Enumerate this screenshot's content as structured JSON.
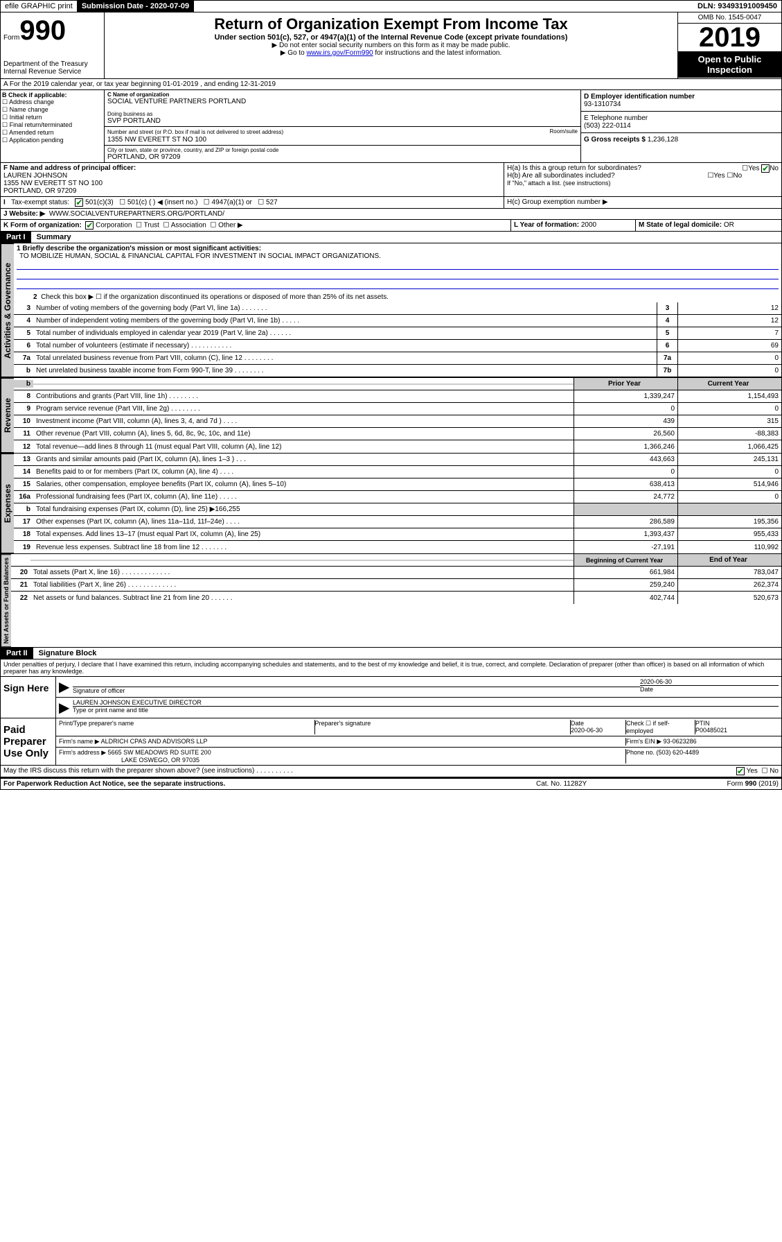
{
  "topbar": {
    "efile": "efile GRAPHIC print",
    "submission_label": "Submission Date - 2020-07-09",
    "dln": "DLN: 93493191009450"
  },
  "header": {
    "form_label": "Form",
    "form_number": "990",
    "title": "Return of Organization Exempt From Income Tax",
    "subtitle": "Under section 501(c), 527, or 4947(a)(1) of the Internal Revenue Code (except private foundations)",
    "note1": "▶ Do not enter social security numbers on this form as it may be made public.",
    "note2_pre": "▶ Go to ",
    "note2_link": "www.irs.gov/Form990",
    "note2_post": " for instructions and the latest information.",
    "omb": "OMB No. 1545-0047",
    "year": "2019",
    "inspect": "Open to Public Inspection",
    "dept": "Department of the Treasury\nInternal Revenue Service"
  },
  "row_a": "A For the 2019 calendar year, or tax year beginning 01-01-2019    , and ending 12-31-2019",
  "section_b": {
    "label": "B Check if applicable:",
    "opts": [
      "Address change",
      "Name change",
      "Initial return",
      "Final return/terminated",
      "Amended return",
      "Application pending"
    ]
  },
  "section_c": {
    "name_lbl": "C Name of organization",
    "name": "SOCIAL VENTURE PARTNERS PORTLAND",
    "dba_lbl": "Doing business as",
    "dba": "SVP PORTLAND",
    "addr_lbl": "Number and street (or P.O. box if mail is not delivered to street address)",
    "room_lbl": "Room/suite",
    "addr": "1355 NW EVERETT ST NO 100",
    "city_lbl": "City or town, state or province, country, and ZIP or foreign postal code",
    "city": "PORTLAND, OR  97209"
  },
  "section_d": {
    "ein_lbl": "D Employer identification number",
    "ein": "93-1310734",
    "phone_lbl": "E Telephone number",
    "phone": "(503) 222-0114",
    "gross_lbl": "G Gross receipts $ ",
    "gross": "1,236,128"
  },
  "section_f": {
    "lbl": "F Name and address of principal officer:",
    "name": "LAUREN JOHNSON",
    "addr1": "1355 NW EVERETT ST NO 100",
    "addr2": "PORTLAND, OR  97209"
  },
  "section_h": {
    "ha": "H(a)  Is this a group return for subordinates?",
    "hb": "H(b)  Are all subordinates included?",
    "hb_note": "If \"No,\" attach a list. (see instructions)",
    "hc": "H(c)  Group exemption number ▶"
  },
  "row_i": {
    "lbl": "Tax-exempt status:",
    "o1": "501(c)(3)",
    "o2": "501(c) (   ) ◀ (insert no.)",
    "o3": "4947(a)(1) or",
    "o4": "527"
  },
  "row_j": {
    "lbl": "J   Website: ▶",
    "url": "WWW.SOCIALVENTUREPARTNERS.ORG/PORTLAND/"
  },
  "row_k": {
    "lbl": "K Form of organization:",
    "o1": "Corporation",
    "o2": "Trust",
    "o3": "Association",
    "o4": "Other ▶",
    "l_lbl": "L Year of formation: ",
    "l_val": "2000",
    "m_lbl": "M State of legal domicile: ",
    "m_val": "OR"
  },
  "part1": {
    "hdr": "Part I",
    "title": "Summary",
    "l1_lbl": "1  Briefly describe the organization's mission or most significant activities:",
    "l1_val": "TO MOBILIZE HUMAN, SOCIAL & FINANCIAL CAPITAL FOR INVESTMENT IN SOCIAL IMPACT ORGANIZATIONS.",
    "l2": "Check this box ▶ ☐  if the organization discontinued its operations or disposed of more than 25% of its net assets.",
    "tabs": {
      "gov": "Activities & Governance",
      "rev": "Revenue",
      "exp": "Expenses",
      "net": "Net Assets or Fund Balances"
    },
    "col_prior": "Prior Year",
    "col_curr": "Current Year",
    "col_beg": "Beginning of Current Year",
    "col_end": "End of Year",
    "lines_gov": [
      {
        "n": "3",
        "d": "Number of voting members of the governing body (Part VI, line 1a)   .    .    .    .    .    .    .",
        "b": "3",
        "v": "12"
      },
      {
        "n": "4",
        "d": "Number of independent voting members of the governing body (Part VI, line 1b)   .    .    .    .    .",
        "b": "4",
        "v": "12"
      },
      {
        "n": "5",
        "d": "Total number of individuals employed in calendar year 2019 (Part V, line 2a)   .    .    .    .    .    .",
        "b": "5",
        "v": "7"
      },
      {
        "n": "6",
        "d": "Total number of volunteers (estimate if necessary)   .    .    .    .    .    .    .    .    .    .    .",
        "b": "6",
        "v": "69"
      },
      {
        "n": "7a",
        "d": "Total unrelated business revenue from Part VIII, column (C), line 12   .    .    .    .    .    .    .    .",
        "b": "7a",
        "v": "0"
      },
      {
        "n": "b",
        "d": "Net unrelated business taxable income from Form 990-T, line 39   .    .    .    .    .    .    .    .",
        "b": "7b",
        "v": "0"
      }
    ],
    "lines_rev": [
      {
        "n": "8",
        "d": "Contributions and grants (Part VIII, line 1h)   .    .    .    .    .    .    .    .",
        "p": "1,339,247",
        "c": "1,154,493"
      },
      {
        "n": "9",
        "d": "Program service revenue (Part VIII, line 2g)   .    .    .    .    .    .    .    .",
        "p": "0",
        "c": "0"
      },
      {
        "n": "10",
        "d": "Investment income (Part VIII, column (A), lines 3, 4, and 7d )   .    .    .    .",
        "p": "439",
        "c": "315"
      },
      {
        "n": "11",
        "d": "Other revenue (Part VIII, column (A), lines 5, 6d, 8c, 9c, 10c, and 11e)",
        "p": "26,560",
        "c": "-88,383"
      },
      {
        "n": "12",
        "d": "Total revenue—add lines 8 through 11 (must equal Part VIII, column (A), line 12)",
        "p": "1,366,246",
        "c": "1,066,425"
      }
    ],
    "lines_exp": [
      {
        "n": "13",
        "d": "Grants and similar amounts paid (Part IX, column (A), lines 1–3 )   .    .    .",
        "p": "443,663",
        "c": "245,131"
      },
      {
        "n": "14",
        "d": "Benefits paid to or for members (Part IX, column (A), line 4)   .    .    .    .",
        "p": "0",
        "c": "0"
      },
      {
        "n": "15",
        "d": "Salaries, other compensation, employee benefits (Part IX, column (A), lines 5–10)",
        "p": "638,413",
        "c": "514,946"
      },
      {
        "n": "16a",
        "d": "Professional fundraising fees (Part IX, column (A), line 11e)   .    .    .    .    .",
        "p": "24,772",
        "c": "0"
      },
      {
        "n": "b",
        "d": "Total fundraising expenses (Part IX, column (D), line 25) ▶166,255",
        "p": "",
        "c": "",
        "grey": true
      },
      {
        "n": "17",
        "d": "Other expenses (Part IX, column (A), lines 11a–11d, 11f–24e)   .    .    .    .",
        "p": "286,589",
        "c": "195,356"
      },
      {
        "n": "18",
        "d": "Total expenses. Add lines 13–17 (must equal Part IX, column (A), line 25)",
        "p": "1,393,437",
        "c": "955,433"
      },
      {
        "n": "19",
        "d": "Revenue less expenses. Subtract line 18 from line 12   .    .    .    .    .    .    .",
        "p": "-27,191",
        "c": "110,992"
      }
    ],
    "lines_net": [
      {
        "n": "20",
        "d": "Total assets (Part X, line 16)   .    .    .    .    .    .    .    .    .    .    .    .    .",
        "p": "661,984",
        "c": "783,047"
      },
      {
        "n": "21",
        "d": "Total liabilities (Part X, line 26)   .    .    .    .    .    .    .    .    .    .    .    .    .",
        "p": "259,240",
        "c": "262,374"
      },
      {
        "n": "22",
        "d": "Net assets or fund balances. Subtract line 21 from line 20   .    .    .    .    .    .",
        "p": "402,744",
        "c": "520,673"
      }
    ]
  },
  "part2": {
    "hdr": "Part II",
    "title": "Signature Block",
    "declare": "Under penalties of perjury, I declare that I have examined this return, including accompanying schedules and statements, and to the best of my knowledge and belief, it is true, correct, and complete. Declaration of preparer (other than officer) is based on all information of which preparer has any knowledge."
  },
  "sign": {
    "lbl": "Sign Here",
    "sig_lbl": "Signature of officer",
    "date": "2020-06-30",
    "date_lbl": "Date",
    "name": "LAUREN JOHNSON  EXECUTIVE DIRECTOR",
    "name_lbl": "Type or print name and title"
  },
  "paid": {
    "lbl": "Paid Preparer Use Only",
    "h1": "Print/Type preparer's name",
    "h2": "Preparer's signature",
    "h3": "Date",
    "h3v": "2020-06-30",
    "h4": "Check ☐ if self-employed",
    "h5": "PTIN",
    "h5v": "P00485021",
    "firm_lbl": "Firm's name    ▶ ",
    "firm": "ALDRICH CPAS AND ADVISORS LLP",
    "ein_lbl": "Firm's EIN ▶ ",
    "ein": "93-0623286",
    "addr_lbl": "Firm's address ▶ ",
    "addr1": "5665 SW MEADOWS RD SUITE 200",
    "addr2": "LAKE OSWEGO, OR  97035",
    "ph_lbl": "Phone no. ",
    "ph": "(503) 620-4489"
  },
  "footer": {
    "discuss": "May the IRS discuss this return with the preparer shown above? (see instructions)   .    .    .    .    .    .    .    .    .    .",
    "yes": "Yes",
    "no": "No",
    "pra": "For Paperwork Reduction Act Notice, see the separate instructions.",
    "cat": "Cat. No. 11282Y",
    "form": "Form 990 (2019)"
  }
}
